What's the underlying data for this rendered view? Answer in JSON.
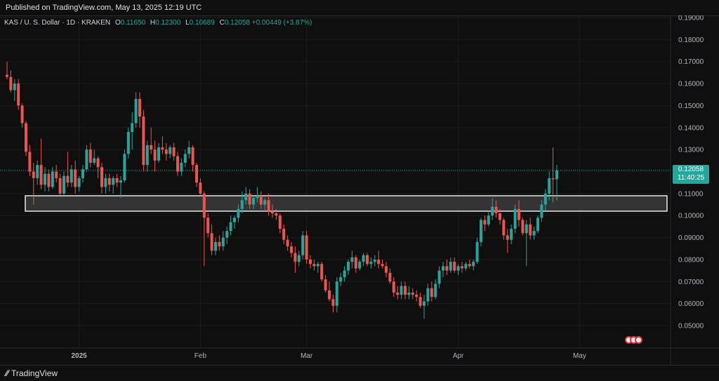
{
  "header": {
    "published": "Published on TradingView.com, May 13, 2025 12:19 UTC"
  },
  "legend": {
    "symbol": "KAS / U. S. Dollar · 1D · KRAKEN",
    "o_label": "O",
    "o": "0.11650",
    "h_label": "H",
    "h": "0.12300",
    "l_label": "L",
    "l": "0.10689",
    "c_label": "C",
    "c": "0.12058",
    "change": "+0.00449 (+3.87%)"
  },
  "price_label": {
    "price": "0.12058",
    "countdown": "11:40:25"
  },
  "footer": {
    "brand": "TradingView",
    "brand_icon": "tradingview-logo-icon"
  },
  "events": {
    "icon": "us-flag-event-icon",
    "count": 3
  },
  "colors": {
    "up": "#26a69a",
    "down": "#ef5350",
    "background": "#0f0f0f",
    "grid": "#1c1c1c",
    "zone_fill": "#3b3b3b",
    "zone_border": "#e6e6e6"
  },
  "chart_data": {
    "type": "candlestick",
    "title": "",
    "xlabel": "",
    "ylabel": "",
    "ylim": [
      0.045,
      0.193
    ],
    "y_ticks": [
      "0.05000",
      "0.06000",
      "0.07000",
      "0.08000",
      "0.09000",
      "0.10000",
      "0.11000",
      "0.12000",
      "0.13000",
      "0.14000",
      "0.15000",
      "0.16000",
      "0.17000",
      "0.18000",
      "0.19000"
    ],
    "x_tick_labels": [
      {
        "label": "2025",
        "bold": true
      },
      {
        "label": "Feb",
        "bold": false
      },
      {
        "label": "Mar",
        "bold": false
      },
      {
        "label": "Apr",
        "bold": false
      },
      {
        "label": "May",
        "bold": false
      }
    ],
    "zone": {
      "low": 0.102,
      "high": 0.109
    },
    "last_price": 0.12058,
    "series": [
      {
        "o": 0.164,
        "h": 0.17,
        "l": 0.162,
        "c": 0.163
      },
      {
        "o": 0.163,
        "h": 0.166,
        "l": 0.156,
        "c": 0.157
      },
      {
        "o": 0.157,
        "h": 0.162,
        "l": 0.152,
        "c": 0.16
      },
      {
        "o": 0.16,
        "h": 0.162,
        "l": 0.148,
        "c": 0.15
      },
      {
        "o": 0.15,
        "h": 0.151,
        "l": 0.14,
        "c": 0.142
      },
      {
        "o": 0.142,
        "h": 0.143,
        "l": 0.127,
        "c": 0.129
      },
      {
        "o": 0.129,
        "h": 0.132,
        "l": 0.118,
        "c": 0.12
      },
      {
        "o": 0.12,
        "h": 0.124,
        "l": 0.105,
        "c": 0.117
      },
      {
        "o": 0.117,
        "h": 0.125,
        "l": 0.114,
        "c": 0.123
      },
      {
        "o": 0.123,
        "h": 0.135,
        "l": 0.112,
        "c": 0.114
      },
      {
        "o": 0.114,
        "h": 0.122,
        "l": 0.111,
        "c": 0.119
      },
      {
        "o": 0.119,
        "h": 0.121,
        "l": 0.111,
        "c": 0.113
      },
      {
        "o": 0.113,
        "h": 0.122,
        "l": 0.112,
        "c": 0.12
      },
      {
        "o": 0.12,
        "h": 0.123,
        "l": 0.115,
        "c": 0.117
      },
      {
        "o": 0.117,
        "h": 0.119,
        "l": 0.109,
        "c": 0.11
      },
      {
        "o": 0.11,
        "h": 0.12,
        "l": 0.109,
        "c": 0.118
      },
      {
        "o": 0.118,
        "h": 0.129,
        "l": 0.113,
        "c": 0.115
      },
      {
        "o": 0.115,
        "h": 0.123,
        "l": 0.113,
        "c": 0.121
      },
      {
        "o": 0.121,
        "h": 0.125,
        "l": 0.11,
        "c": 0.113
      },
      {
        "o": 0.113,
        "h": 0.118,
        "l": 0.111,
        "c": 0.117
      },
      {
        "o": 0.117,
        "h": 0.123,
        "l": 0.115,
        "c": 0.121
      },
      {
        "o": 0.121,
        "h": 0.132,
        "l": 0.12,
        "c": 0.13
      },
      {
        "o": 0.13,
        "h": 0.133,
        "l": 0.122,
        "c": 0.124
      },
      {
        "o": 0.124,
        "h": 0.13,
        "l": 0.123,
        "c": 0.126
      },
      {
        "o": 0.126,
        "h": 0.127,
        "l": 0.117,
        "c": 0.122
      },
      {
        "o": 0.122,
        "h": 0.124,
        "l": 0.11,
        "c": 0.113
      },
      {
        "o": 0.113,
        "h": 0.119,
        "l": 0.11,
        "c": 0.117
      },
      {
        "o": 0.117,
        "h": 0.119,
        "l": 0.111,
        "c": 0.114
      },
      {
        "o": 0.114,
        "h": 0.118,
        "l": 0.11,
        "c": 0.117
      },
      {
        "o": 0.117,
        "h": 0.119,
        "l": 0.113,
        "c": 0.115
      },
      {
        "o": 0.115,
        "h": 0.118,
        "l": 0.108,
        "c": 0.116
      },
      {
        "o": 0.116,
        "h": 0.13,
        "l": 0.115,
        "c": 0.128
      },
      {
        "o": 0.128,
        "h": 0.14,
        "l": 0.126,
        "c": 0.138
      },
      {
        "o": 0.138,
        "h": 0.147,
        "l": 0.13,
        "c": 0.142
      },
      {
        "o": 0.142,
        "h": 0.156,
        "l": 0.14,
        "c": 0.153
      },
      {
        "o": 0.153,
        "h": 0.156,
        "l": 0.14,
        "c": 0.145
      },
      {
        "o": 0.145,
        "h": 0.148,
        "l": 0.12,
        "c": 0.123
      },
      {
        "o": 0.123,
        "h": 0.134,
        "l": 0.12,
        "c": 0.132
      },
      {
        "o": 0.132,
        "h": 0.14,
        "l": 0.128,
        "c": 0.13
      },
      {
        "o": 0.13,
        "h": 0.134,
        "l": 0.12,
        "c": 0.125
      },
      {
        "o": 0.125,
        "h": 0.133,
        "l": 0.124,
        "c": 0.131
      },
      {
        "o": 0.131,
        "h": 0.136,
        "l": 0.128,
        "c": 0.13
      },
      {
        "o": 0.13,
        "h": 0.133,
        "l": 0.125,
        "c": 0.128
      },
      {
        "o": 0.128,
        "h": 0.132,
        "l": 0.126,
        "c": 0.131
      },
      {
        "o": 0.131,
        "h": 0.133,
        "l": 0.125,
        "c": 0.127
      },
      {
        "o": 0.127,
        "h": 0.129,
        "l": 0.118,
        "c": 0.12
      },
      {
        "o": 0.12,
        "h": 0.126,
        "l": 0.118,
        "c": 0.124
      },
      {
        "o": 0.124,
        "h": 0.13,
        "l": 0.122,
        "c": 0.128
      },
      {
        "o": 0.128,
        "h": 0.134,
        "l": 0.126,
        "c": 0.131
      },
      {
        "o": 0.131,
        "h": 0.132,
        "l": 0.12,
        "c": 0.123
      },
      {
        "o": 0.123,
        "h": 0.124,
        "l": 0.113,
        "c": 0.115
      },
      {
        "o": 0.115,
        "h": 0.117,
        "l": 0.109,
        "c": 0.11
      },
      {
        "o": 0.11,
        "h": 0.111,
        "l": 0.077,
        "c": 0.099
      },
      {
        "o": 0.099,
        "h": 0.101,
        "l": 0.09,
        "c": 0.092
      },
      {
        "o": 0.092,
        "h": 0.096,
        "l": 0.082,
        "c": 0.084
      },
      {
        "o": 0.084,
        "h": 0.09,
        "l": 0.082,
        "c": 0.088
      },
      {
        "o": 0.088,
        "h": 0.091,
        "l": 0.084,
        "c": 0.086
      },
      {
        "o": 0.086,
        "h": 0.093,
        "l": 0.084,
        "c": 0.09
      },
      {
        "o": 0.09,
        "h": 0.095,
        "l": 0.087,
        "c": 0.093
      },
      {
        "o": 0.093,
        "h": 0.1,
        "l": 0.091,
        "c": 0.097
      },
      {
        "o": 0.097,
        "h": 0.1,
        "l": 0.094,
        "c": 0.099
      },
      {
        "o": 0.099,
        "h": 0.105,
        "l": 0.097,
        "c": 0.103
      },
      {
        "o": 0.103,
        "h": 0.111,
        "l": 0.101,
        "c": 0.107
      },
      {
        "o": 0.107,
        "h": 0.113,
        "l": 0.105,
        "c": 0.11
      },
      {
        "o": 0.11,
        "h": 0.112,
        "l": 0.103,
        "c": 0.105
      },
      {
        "o": 0.105,
        "h": 0.109,
        "l": 0.103,
        "c": 0.108
      },
      {
        "o": 0.108,
        "h": 0.113,
        "l": 0.106,
        "c": 0.109
      },
      {
        "o": 0.109,
        "h": 0.111,
        "l": 0.103,
        "c": 0.105
      },
      {
        "o": 0.105,
        "h": 0.108,
        "l": 0.102,
        "c": 0.107
      },
      {
        "o": 0.107,
        "h": 0.11,
        "l": 0.1,
        "c": 0.102
      },
      {
        "o": 0.102,
        "h": 0.105,
        "l": 0.099,
        "c": 0.101
      },
      {
        "o": 0.101,
        "h": 0.103,
        "l": 0.098,
        "c": 0.1
      },
      {
        "o": 0.1,
        "h": 0.101,
        "l": 0.092,
        "c": 0.094
      },
      {
        "o": 0.094,
        "h": 0.096,
        "l": 0.087,
        "c": 0.089
      },
      {
        "o": 0.089,
        "h": 0.091,
        "l": 0.084,
        "c": 0.086
      },
      {
        "o": 0.086,
        "h": 0.088,
        "l": 0.081,
        "c": 0.083
      },
      {
        "o": 0.083,
        "h": 0.086,
        "l": 0.074,
        "c": 0.079
      },
      {
        "o": 0.079,
        "h": 0.084,
        "l": 0.077,
        "c": 0.082
      },
      {
        "o": 0.082,
        "h": 0.093,
        "l": 0.08,
        "c": 0.091
      },
      {
        "o": 0.091,
        "h": 0.093,
        "l": 0.078,
        "c": 0.08
      },
      {
        "o": 0.08,
        "h": 0.082,
        "l": 0.076,
        "c": 0.078
      },
      {
        "o": 0.078,
        "h": 0.08,
        "l": 0.075,
        "c": 0.077
      },
      {
        "o": 0.077,
        "h": 0.079,
        "l": 0.074,
        "c": 0.078
      },
      {
        "o": 0.078,
        "h": 0.079,
        "l": 0.07,
        "c": 0.071
      },
      {
        "o": 0.071,
        "h": 0.073,
        "l": 0.065,
        "c": 0.066
      },
      {
        "o": 0.066,
        "h": 0.07,
        "l": 0.061,
        "c": 0.062
      },
      {
        "o": 0.062,
        "h": 0.064,
        "l": 0.056,
        "c": 0.059
      },
      {
        "o": 0.059,
        "h": 0.072,
        "l": 0.056,
        "c": 0.07
      },
      {
        "o": 0.07,
        "h": 0.074,
        "l": 0.068,
        "c": 0.072
      },
      {
        "o": 0.072,
        "h": 0.077,
        "l": 0.07,
        "c": 0.075
      },
      {
        "o": 0.075,
        "h": 0.08,
        "l": 0.073,
        "c": 0.079
      },
      {
        "o": 0.079,
        "h": 0.084,
        "l": 0.076,
        "c": 0.081
      },
      {
        "o": 0.081,
        "h": 0.082,
        "l": 0.074,
        "c": 0.076
      },
      {
        "o": 0.076,
        "h": 0.08,
        "l": 0.075,
        "c": 0.079
      },
      {
        "o": 0.079,
        "h": 0.083,
        "l": 0.077,
        "c": 0.082
      },
      {
        "o": 0.082,
        "h": 0.083,
        "l": 0.077,
        "c": 0.078
      },
      {
        "o": 0.078,
        "h": 0.081,
        "l": 0.076,
        "c": 0.079
      },
      {
        "o": 0.079,
        "h": 0.082,
        "l": 0.077,
        "c": 0.08
      },
      {
        "o": 0.08,
        "h": 0.084,
        "l": 0.076,
        "c": 0.078
      },
      {
        "o": 0.078,
        "h": 0.08,
        "l": 0.076,
        "c": 0.077
      },
      {
        "o": 0.077,
        "h": 0.079,
        "l": 0.072,
        "c": 0.074
      },
      {
        "o": 0.074,
        "h": 0.076,
        "l": 0.069,
        "c": 0.07
      },
      {
        "o": 0.07,
        "h": 0.072,
        "l": 0.063,
        "c": 0.065
      },
      {
        "o": 0.065,
        "h": 0.068,
        "l": 0.062,
        "c": 0.064
      },
      {
        "o": 0.064,
        "h": 0.07,
        "l": 0.062,
        "c": 0.068
      },
      {
        "o": 0.068,
        "h": 0.07,
        "l": 0.062,
        "c": 0.064
      },
      {
        "o": 0.064,
        "h": 0.068,
        "l": 0.062,
        "c": 0.065
      },
      {
        "o": 0.065,
        "h": 0.067,
        "l": 0.062,
        "c": 0.064
      },
      {
        "o": 0.064,
        "h": 0.066,
        "l": 0.061,
        "c": 0.063
      },
      {
        "o": 0.063,
        "h": 0.065,
        "l": 0.058,
        "c": 0.059
      },
      {
        "o": 0.059,
        "h": 0.064,
        "l": 0.053,
        "c": 0.061
      },
      {
        "o": 0.061,
        "h": 0.069,
        "l": 0.059,
        "c": 0.067
      },
      {
        "o": 0.067,
        "h": 0.07,
        "l": 0.061,
        "c": 0.063
      },
      {
        "o": 0.063,
        "h": 0.071,
        "l": 0.062,
        "c": 0.069
      },
      {
        "o": 0.069,
        "h": 0.077,
        "l": 0.067,
        "c": 0.075
      },
      {
        "o": 0.075,
        "h": 0.079,
        "l": 0.072,
        "c": 0.077
      },
      {
        "o": 0.077,
        "h": 0.08,
        "l": 0.073,
        "c": 0.075
      },
      {
        "o": 0.075,
        "h": 0.081,
        "l": 0.074,
        "c": 0.079
      },
      {
        "o": 0.079,
        "h": 0.081,
        "l": 0.074,
        "c": 0.075
      },
      {
        "o": 0.075,
        "h": 0.078,
        "l": 0.073,
        "c": 0.077
      },
      {
        "o": 0.077,
        "h": 0.079,
        "l": 0.074,
        "c": 0.076
      },
      {
        "o": 0.076,
        "h": 0.079,
        "l": 0.075,
        "c": 0.078
      },
      {
        "o": 0.078,
        "h": 0.08,
        "l": 0.076,
        "c": 0.077
      },
      {
        "o": 0.077,
        "h": 0.08,
        "l": 0.075,
        "c": 0.079
      },
      {
        "o": 0.079,
        "h": 0.09,
        "l": 0.078,
        "c": 0.088
      },
      {
        "o": 0.088,
        "h": 0.099,
        "l": 0.086,
        "c": 0.098
      },
      {
        "o": 0.098,
        "h": 0.1,
        "l": 0.093,
        "c": 0.096
      },
      {
        "o": 0.096,
        "h": 0.102,
        "l": 0.095,
        "c": 0.1
      },
      {
        "o": 0.1,
        "h": 0.108,
        "l": 0.098,
        "c": 0.104
      },
      {
        "o": 0.104,
        "h": 0.107,
        "l": 0.099,
        "c": 0.101
      },
      {
        "o": 0.101,
        "h": 0.103,
        "l": 0.096,
        "c": 0.098
      },
      {
        "o": 0.098,
        "h": 0.099,
        "l": 0.089,
        "c": 0.091
      },
      {
        "o": 0.091,
        "h": 0.094,
        "l": 0.083,
        "c": 0.089
      },
      {
        "o": 0.089,
        "h": 0.096,
        "l": 0.087,
        "c": 0.094
      },
      {
        "o": 0.094,
        "h": 0.105,
        "l": 0.092,
        "c": 0.103
      },
      {
        "o": 0.103,
        "h": 0.107,
        "l": 0.095,
        "c": 0.098
      },
      {
        "o": 0.098,
        "h": 0.099,
        "l": 0.091,
        "c": 0.092
      },
      {
        "o": 0.092,
        "h": 0.098,
        "l": 0.077,
        "c": 0.096
      },
      {
        "o": 0.096,
        "h": 0.099,
        "l": 0.089,
        "c": 0.091
      },
      {
        "o": 0.091,
        "h": 0.095,
        "l": 0.089,
        "c": 0.093
      },
      {
        "o": 0.093,
        "h": 0.1,
        "l": 0.092,
        "c": 0.099
      },
      {
        "o": 0.099,
        "h": 0.107,
        "l": 0.097,
        "c": 0.105
      },
      {
        "o": 0.105,
        "h": 0.112,
        "l": 0.102,
        "c": 0.11
      },
      {
        "o": 0.11,
        "h": 0.12,
        "l": 0.107,
        "c": 0.117
      },
      {
        "o": 0.117,
        "h": 0.131,
        "l": 0.106,
        "c": 0.1165
      },
      {
        "o": 0.1165,
        "h": 0.123,
        "l": 0.10689,
        "c": 0.12058
      }
    ]
  }
}
